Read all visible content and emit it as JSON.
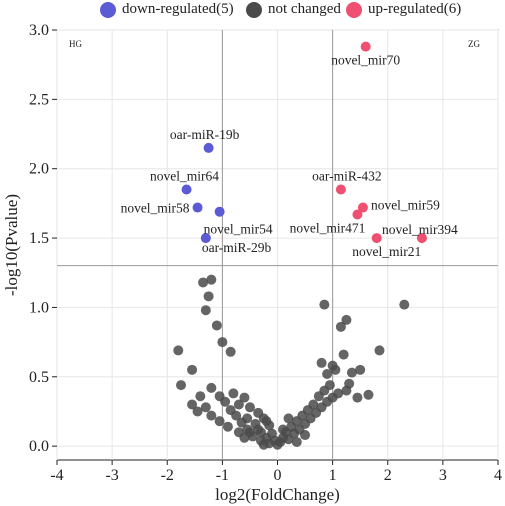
{
  "legend": {
    "items": [
      {
        "label": "down-regulated(5)",
        "color": "#5b5bd6"
      },
      {
        "label": "not changed",
        "color": "#4a4a4a"
      },
      {
        "label": "up-regulated(6)",
        "color": "#ef4f70"
      }
    ]
  },
  "chart_data": {
    "type": "scatter",
    "title": "",
    "xlabel": "log2(FoldChange)",
    "ylabel": "-log10(Pvalue)",
    "xlim": [
      -4,
      4
    ],
    "ylim": [
      -0.1,
      3.0
    ],
    "xticks": [
      "-4",
      "-3",
      "-2",
      "-1",
      "0",
      "1",
      "2",
      "3",
      "4"
    ],
    "yticks": [
      "0.0",
      "0.5",
      "1.0",
      "1.5",
      "2.0",
      "2.5",
      "3.0"
    ],
    "grid": true,
    "vlines": [
      -1,
      1
    ],
    "hline": 1.301,
    "group_labels": {
      "left": "HG",
      "right": "ZG"
    },
    "series": [
      {
        "name": "down-regulated(5)",
        "color": "#5b5bd6",
        "points": [
          {
            "x": -1.25,
            "y": 2.15,
            "label": "oar-miR-19b"
          },
          {
            "x": -1.65,
            "y": 1.85,
            "label": "novel_mir64"
          },
          {
            "x": -1.45,
            "y": 1.72,
            "label": "novel_mir58"
          },
          {
            "x": -1.05,
            "y": 1.69,
            "label": "novel_mir54"
          },
          {
            "x": -1.3,
            "y": 1.5,
            "label": "oar-miR-29b"
          }
        ]
      },
      {
        "name": "up-regulated(6)",
        "color": "#ef4f70",
        "points": [
          {
            "x": 1.6,
            "y": 2.88,
            "label": "novel_mir70"
          },
          {
            "x": 1.15,
            "y": 1.85,
            "label": "oar-miR-432"
          },
          {
            "x": 1.55,
            "y": 1.72,
            "label": "novel_mir59"
          },
          {
            "x": 1.45,
            "y": 1.67,
            "label": "novel_mir471"
          },
          {
            "x": 2.62,
            "y": 1.5,
            "label": "novel_mir394"
          },
          {
            "x": 1.8,
            "y": 1.5,
            "label": "novel_mir21"
          }
        ]
      },
      {
        "name": "not changed",
        "color": "#4a4a4a",
        "points": [
          {
            "x": -1.2,
            "y": 1.2
          },
          {
            "x": -1.35,
            "y": 1.18
          },
          {
            "x": -1.25,
            "y": 1.08
          },
          {
            "x": -1.3,
            "y": 0.98
          },
          {
            "x": -1.1,
            "y": 0.87
          },
          {
            "x": -1.0,
            "y": 0.75
          },
          {
            "x": -1.8,
            "y": 0.69
          },
          {
            "x": -0.85,
            "y": 0.68
          },
          {
            "x": -1.55,
            "y": 0.55
          },
          {
            "x": -1.75,
            "y": 0.44
          },
          {
            "x": -1.2,
            "y": 0.42
          },
          {
            "x": -0.8,
            "y": 0.38
          },
          {
            "x": -1.4,
            "y": 0.36
          },
          {
            "x": -1.05,
            "y": 0.36
          },
          {
            "x": -0.6,
            "y": 0.35
          },
          {
            "x": -1.55,
            "y": 0.3
          },
          {
            "x": -0.95,
            "y": 0.32
          },
          {
            "x": -0.7,
            "y": 0.3
          },
          {
            "x": -1.3,
            "y": 0.28
          },
          {
            "x": -0.5,
            "y": 0.28
          },
          {
            "x": -1.45,
            "y": 0.25
          },
          {
            "x": -0.85,
            "y": 0.26
          },
          {
            "x": -0.35,
            "y": 0.24
          },
          {
            "x": -1.2,
            "y": 0.22
          },
          {
            "x": -0.75,
            "y": 0.22
          },
          {
            "x": -0.55,
            "y": 0.2
          },
          {
            "x": -0.25,
            "y": 0.2
          },
          {
            "x": -1.05,
            "y": 0.18
          },
          {
            "x": -0.65,
            "y": 0.17
          },
          {
            "x": -0.4,
            "y": 0.16
          },
          {
            "x": -0.15,
            "y": 0.15
          },
          {
            "x": -0.9,
            "y": 0.14
          },
          {
            "x": -0.55,
            "y": 0.12
          },
          {
            "x": -0.3,
            "y": 0.1
          },
          {
            "x": -0.1,
            "y": 0.09
          },
          {
            "x": -0.7,
            "y": 0.1
          },
          {
            "x": -0.45,
            "y": 0.07
          },
          {
            "x": -0.2,
            "y": 0.06
          },
          {
            "x": -0.05,
            "y": 0.04
          },
          {
            "x": -0.3,
            "y": 0.04
          },
          {
            "x": -0.6,
            "y": 0.06
          },
          {
            "x": -0.15,
            "y": 0.02
          },
          {
            "x": 0.0,
            "y": 0.01
          },
          {
            "x": 0.05,
            "y": 0.03
          },
          {
            "x": 0.1,
            "y": 0.06
          },
          {
            "x": 0.2,
            "y": 0.05
          },
          {
            "x": 0.3,
            "y": 0.09
          },
          {
            "x": 0.15,
            "y": 0.1
          },
          {
            "x": 0.4,
            "y": 0.12
          },
          {
            "x": 0.25,
            "y": 0.14
          },
          {
            "x": 0.5,
            "y": 0.16
          },
          {
            "x": 0.35,
            "y": 0.18
          },
          {
            "x": 0.6,
            "y": 0.2
          },
          {
            "x": 0.45,
            "y": 0.22
          },
          {
            "x": 0.7,
            "y": 0.24
          },
          {
            "x": 0.55,
            "y": 0.26
          },
          {
            "x": 0.8,
            "y": 0.28
          },
          {
            "x": 0.65,
            "y": 0.3
          },
          {
            "x": 0.9,
            "y": 0.32
          },
          {
            "x": 1.0,
            "y": 0.35
          },
          {
            "x": 0.75,
            "y": 0.36
          },
          {
            "x": 1.1,
            "y": 0.38
          },
          {
            "x": 0.85,
            "y": 0.4
          },
          {
            "x": 1.25,
            "y": 0.4
          },
          {
            "x": 1.3,
            "y": 0.45
          },
          {
            "x": 0.95,
            "y": 0.44
          },
          {
            "x": 0.8,
            "y": 0.6
          },
          {
            "x": 1.0,
            "y": 0.58
          },
          {
            "x": 0.9,
            "y": 0.52
          },
          {
            "x": 1.05,
            "y": 0.55
          },
          {
            "x": 1.5,
            "y": 0.55
          },
          {
            "x": 1.35,
            "y": 0.53
          },
          {
            "x": 1.65,
            "y": 0.37
          },
          {
            "x": 1.45,
            "y": 0.35
          },
          {
            "x": 1.2,
            "y": 0.66
          },
          {
            "x": 1.85,
            "y": 0.69
          },
          {
            "x": 1.15,
            "y": 0.86
          },
          {
            "x": 1.25,
            "y": 0.91
          },
          {
            "x": 0.85,
            "y": 1.02
          },
          {
            "x": 2.3,
            "y": 1.02
          },
          {
            "x": -0.2,
            "y": 0.18
          },
          {
            "x": 0.1,
            "y": 0.12
          },
          {
            "x": -0.35,
            "y": 0.12
          },
          {
            "x": 0.2,
            "y": 0.2
          },
          {
            "x": 0.5,
            "y": 0.08
          },
          {
            "x": -0.5,
            "y": 0.1
          },
          {
            "x": 0.35,
            "y": 0.03
          },
          {
            "x": -0.25,
            "y": 0.01
          }
        ]
      }
    ]
  }
}
